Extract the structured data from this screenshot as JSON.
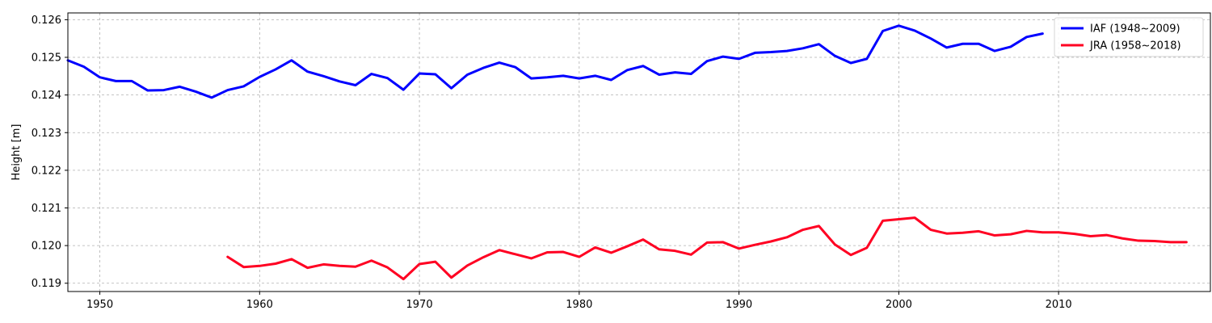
{
  "chart_data": {
    "type": "line",
    "title": "",
    "xlabel": "",
    "ylabel": "Height [m]",
    "xlim": [
      1948,
      2019.5
    ],
    "ylim": [
      0.11878,
      0.12618
    ],
    "xticks": [
      1950,
      1960,
      1970,
      1980,
      1990,
      2000,
      2010
    ],
    "yticks": [
      0.119,
      0.12,
      0.121,
      0.122,
      0.123,
      0.124,
      0.125,
      0.126
    ],
    "ytick_labels": [
      "0.119",
      "0.120",
      "0.121",
      "0.122",
      "0.123",
      "0.124",
      "0.125",
      "0.126"
    ],
    "grid": true,
    "legend_position": "top-right",
    "series": [
      {
        "name": "IAF (1948~2009)",
        "color": "#0000ff",
        "x_start": 1948,
        "values": [
          0.12492,
          0.12475,
          0.12447,
          0.12437,
          0.12437,
          0.12412,
          0.12413,
          0.12422,
          0.12409,
          0.12393,
          0.12413,
          0.12423,
          0.12448,
          0.12468,
          0.12492,
          0.12462,
          0.1245,
          0.12436,
          0.12426,
          0.12456,
          0.12445,
          0.12414,
          0.12457,
          0.12455,
          0.12418,
          0.12454,
          0.12472,
          0.12486,
          0.12474,
          0.12444,
          0.12447,
          0.12451,
          0.12444,
          0.12451,
          0.1244,
          0.12466,
          0.12477,
          0.12454,
          0.1246,
          0.12456,
          0.1249,
          0.12502,
          0.12496,
          0.12512,
          0.12514,
          0.12517,
          0.12524,
          0.12535,
          0.12504,
          0.12485,
          0.12496,
          0.1257,
          0.12584,
          0.12571,
          0.1255,
          0.12526,
          0.12536,
          0.12536,
          0.12517,
          0.12528,
          0.12554,
          0.12563
        ]
      },
      {
        "name": "JRA (1958~2018)",
        "color": "#ff0022",
        "x_start": 1958,
        "values": [
          0.1197,
          0.11943,
          0.11946,
          0.11952,
          0.11964,
          0.11941,
          0.1195,
          0.11946,
          0.11944,
          0.1196,
          0.11942,
          0.11911,
          0.11951,
          0.11957,
          0.11915,
          0.11947,
          0.11969,
          0.11988,
          0.11977,
          0.11966,
          0.11982,
          0.11983,
          0.1197,
          0.11995,
          0.11981,
          0.11998,
          0.12016,
          0.1199,
          0.11986,
          0.11976,
          0.12008,
          0.12009,
          0.11992,
          0.12002,
          0.12011,
          0.12022,
          0.12042,
          0.12052,
          0.12003,
          0.11975,
          0.11994,
          0.12066,
          0.1207,
          0.12074,
          0.12042,
          0.12032,
          0.12034,
          0.12038,
          0.12027,
          0.1203,
          0.12039,
          0.12035,
          0.12035,
          0.12031,
          0.12025,
          0.12028,
          0.12019,
          0.12013,
          0.12012,
          0.12009,
          0.12009
        ]
      }
    ]
  }
}
